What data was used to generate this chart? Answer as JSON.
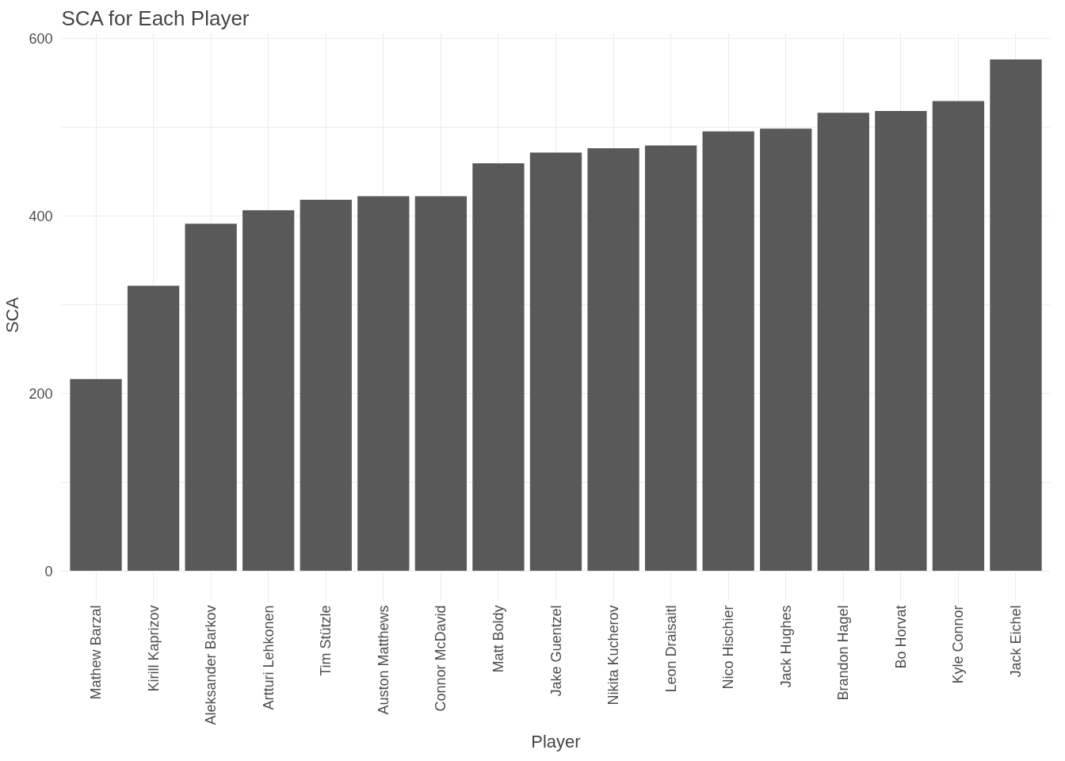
{
  "chart_data": {
    "type": "bar",
    "title": "SCA for Each Player",
    "xlabel": "Player",
    "ylabel": "SCA",
    "categories": [
      "Mathew Barzal",
      "Kirill Kaprizov",
      "Aleksander Barkov",
      "Artturi Lehkonen",
      "Tim Stützle",
      "Auston Matthews",
      "Connor McDavid",
      "Matt Boldy",
      "Jake Guentzel",
      "Nikita Kucherov",
      "Leon Draisaitl",
      "Nico Hischier",
      "Jack Hughes",
      "Brandon Hagel",
      "Bo Horvat",
      "Kyle Connor",
      "Jack Eichel"
    ],
    "values": [
      216,
      321,
      391,
      406,
      418,
      422,
      422,
      459,
      471,
      476,
      479,
      495,
      498,
      516,
      518,
      529,
      576
    ],
    "color": "#595959",
    "ylim": [
      -29,
      605
    ],
    "yticks": [
      0,
      {
        "value": 100,
        "label": null
      },
      200,
      {
        "value": 300,
        "label": null
      },
      400,
      {
        "value": 500,
        "label": null
      },
      600
    ],
    "grid": true
  }
}
